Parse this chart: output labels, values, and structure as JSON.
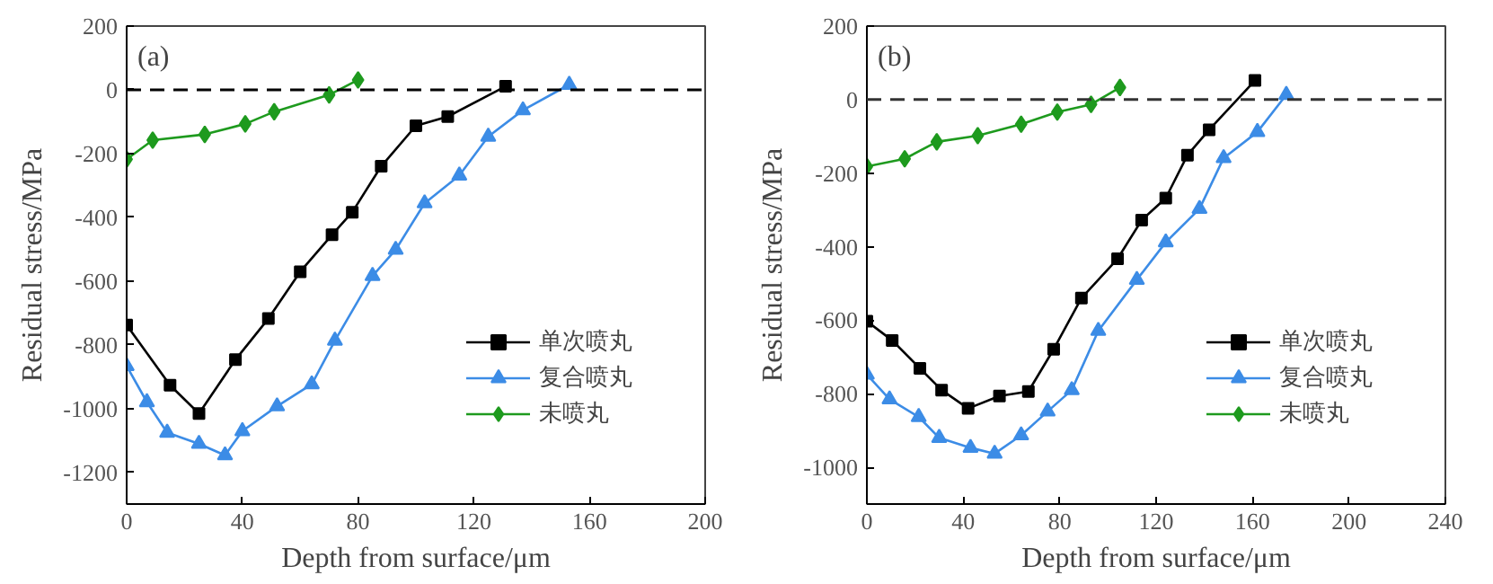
{
  "chart_data": [
    {
      "type": "line",
      "title": "(a)",
      "xlabel": "Depth from surface/μm",
      "ylabel": "Residual stress/MPa",
      "xlim": [
        0,
        200
      ],
      "xticks": [
        0,
        40,
        80,
        120,
        160,
        200
      ],
      "ylim": [
        -1300,
        200
      ],
      "yticks": [
        200,
        0,
        -200,
        -400,
        -600,
        -800,
        -1000,
        -1200
      ],
      "legend": "bottom right",
      "grid": false,
      "ref_lines": [
        {
          "axis": "y",
          "value": 0,
          "color": "#000000",
          "line_style": "dashed"
        }
      ],
      "series": [
        {
          "name": "单次喷丸",
          "color": "#000000",
          "marker": "square",
          "x": [
            0,
            15,
            25,
            37.6,
            49,
            60,
            71,
            78,
            88,
            100,
            111,
            131
          ],
          "values": [
            -738,
            -927,
            -1016,
            -847,
            -718,
            -571,
            -455,
            -384,
            -240,
            -113,
            -84,
            11
          ]
        },
        {
          "name": "复合喷丸",
          "color": "#3c8ce6",
          "marker": "triangle",
          "x": [
            0,
            7,
            14,
            25,
            34,
            40,
            52,
            64,
            72,
            85,
            93,
            103,
            115,
            125,
            137,
            153
          ],
          "values": [
            -867,
            -980,
            -1076,
            -1111,
            -1147,
            -1071,
            -993,
            -924,
            -787,
            -584,
            -502,
            -356,
            -269,
            -147,
            -64,
            16
          ]
        },
        {
          "name": "未喷丸",
          "color": "#1e9a1e",
          "marker": "diamond",
          "x": [
            0,
            9,
            27,
            41,
            51,
            70,
            80
          ],
          "values": [
            -218,
            -158,
            -140,
            -107,
            -69,
            -16,
            31
          ]
        }
      ]
    },
    {
      "type": "line",
      "title": "(b)",
      "xlabel": "Depth from surface/μm",
      "ylabel": "Residual stress/MPa",
      "xlim": [
        0,
        240
      ],
      "xticks": [
        0,
        40,
        80,
        120,
        160,
        200,
        240
      ],
      "ylim": [
        -1100,
        200
      ],
      "yticks": [
        200,
        0,
        -200,
        -400,
        -600,
        -800,
        -1000
      ],
      "legend": "bottom right",
      "grid": false,
      "ref_lines": [
        {
          "axis": "y",
          "value": 0,
          "color": "#333333",
          "line_style": "dashed"
        }
      ],
      "series": [
        {
          "name": "单次喷丸",
          "color": "#000000",
          "marker": "square",
          "x": [
            0,
            10.5,
            22,
            31,
            42,
            55,
            67,
            77.5,
            89,
            104,
            114,
            124,
            133,
            142,
            161
          ],
          "values": [
            -603,
            -655,
            -731,
            -790,
            -840,
            -806,
            -794,
            -679,
            -540,
            -433,
            -328,
            -268,
            -151,
            -82,
            52
          ]
        },
        {
          "name": "复合喷丸",
          "color": "#3c8ce6",
          "marker": "triangle",
          "x": [
            0,
            9.4,
            21.5,
            30,
            43,
            53,
            64,
            75,
            85,
            96,
            112,
            124,
            138,
            148,
            162,
            174
          ],
          "values": [
            -748,
            -815,
            -863,
            -920,
            -947,
            -963,
            -913,
            -848,
            -790,
            -629,
            -490,
            -388,
            -297,
            -159,
            -88,
            13
          ]
        },
        {
          "name": "未喷丸",
          "color": "#1e9a1e",
          "marker": "diamond",
          "x": [
            0,
            15.7,
            29,
            46,
            64,
            79,
            93,
            105
          ],
          "values": [
            -182,
            -161,
            -115,
            -98,
            -67,
            -34,
            -13,
            33
          ]
        }
      ]
    }
  ]
}
